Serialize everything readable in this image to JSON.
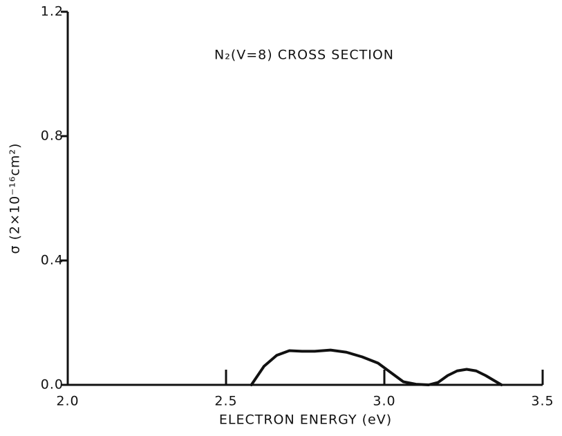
{
  "chart_data": {
    "type": "line",
    "title": "N₂(V=8) CROSS SECTION",
    "xlabel": "ELECTRON ENERGY (eV)",
    "ylabel": "σ (2×10⁻¹⁶cm²)",
    "x": [
      2.58,
      2.62,
      2.66,
      2.7,
      2.74,
      2.78,
      2.83,
      2.88,
      2.93,
      2.98,
      3.02,
      3.06,
      3.1,
      3.14,
      3.17,
      3.2,
      3.23,
      3.26,
      3.29,
      3.32,
      3.35,
      3.37
    ],
    "series": [
      {
        "name": "N₂(V=8)",
        "color": "#111111",
        "values": [
          0,
          0.06,
          0.095,
          0.11,
          0.108,
          0.108,
          0.112,
          0.105,
          0.09,
          0.07,
          0.04,
          0.01,
          0.002,
          0,
          0.008,
          0.03,
          0.045,
          0.05,
          0.045,
          0.03,
          0.012,
          0
        ]
      }
    ],
    "xlim": [
      2.0,
      3.5
    ],
    "ylim": [
      0,
      1.2
    ],
    "xticks": [
      {
        "value": 2.0,
        "label": "2.0"
      },
      2.5,
      {
        "value": 3.0,
        "label": "3.0"
      },
      3.5
    ],
    "yticks": [
      {
        "value": 0,
        "label": "0.0"
      },
      0.4,
      0.8,
      1.2
    ],
    "grid": false
  }
}
